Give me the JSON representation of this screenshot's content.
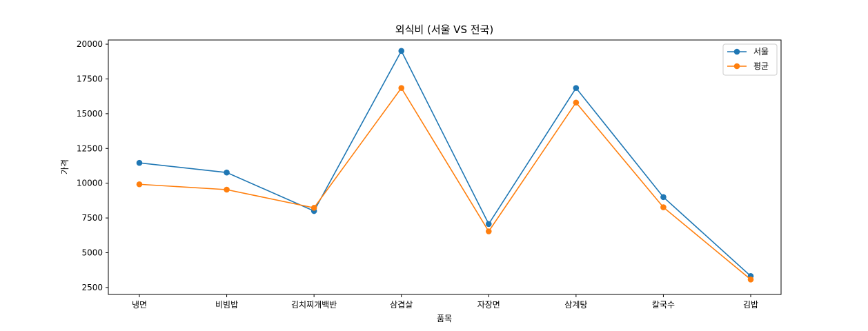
{
  "chart_data": {
    "type": "line",
    "title": "외식비 (서울 VS 전국)",
    "xlabel": "품목",
    "ylabel": "가격",
    "categories": [
      "냉면",
      "비빔밥",
      "김치찌개백반",
      "삼겹살",
      "자장면",
      "삼계탕",
      "칼국수",
      "김밥"
    ],
    "series": [
      {
        "name": "서울",
        "color": "#1f77b4",
        "values": [
          11462,
          10769,
          8000,
          19514,
          7069,
          16846,
          9000,
          3323
        ]
      },
      {
        "name": "평균",
        "color": "#ff7f0e",
        "values": [
          9923,
          9538,
          8231,
          16846,
          6538,
          15800,
          8269,
          3077
        ]
      }
    ],
    "yticks": [
      2500,
      5000,
      7500,
      10000,
      12500,
      15000,
      17500,
      20000
    ],
    "ylim": [
      2000,
      20300
    ],
    "grid": false,
    "legend_position": "top-right"
  }
}
